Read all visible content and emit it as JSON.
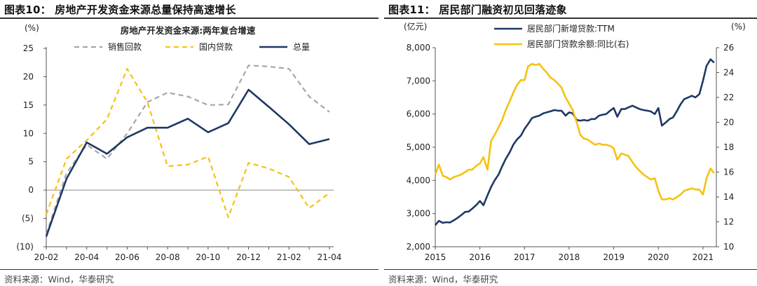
{
  "left": {
    "title": "图表10：  房地产开发资金来源总量保持高速增长",
    "source": "资料来源：Wind，华泰研究",
    "chart_data": {
      "type": "line",
      "title": "房地产开发资金来源:两年复合增速",
      "ylabel": "(%)",
      "xlabel": "",
      "ylim": [
        -10,
        25
      ],
      "yticks": [
        25,
        20,
        15,
        10,
        5,
        0,
        -5,
        -10
      ],
      "ytick_labels": [
        "25",
        "20",
        "15",
        "10",
        "5",
        "0",
        "(5)",
        "(10)"
      ],
      "categories": [
        "20-02",
        "20-03",
        "20-04",
        "20-05",
        "20-06",
        "20-07",
        "20-08",
        "20-09",
        "20-10",
        "20-11",
        "20-12",
        "21-01",
        "21-02",
        "21-03",
        "21-04"
      ],
      "xtick_labels": [
        "20-02",
        "20-04",
        "20-06",
        "20-08",
        "20-10",
        "20-12",
        "21-02",
        "21-04"
      ],
      "legend_position": "top",
      "series": [
        {
          "name": "销售回款",
          "color": "#a6a6a6",
          "dash": "7,5",
          "values": [
            -7.8,
            3.0,
            8.0,
            5.5,
            10.0,
            15.5,
            17.2,
            16.5,
            15.0,
            15.1,
            22.0,
            21.8,
            21.4,
            16.5,
            13.8
          ]
        },
        {
          "name": "国内贷款",
          "color": "#f5c211",
          "dash": "7,5",
          "values": [
            -4.3,
            5.5,
            8.8,
            12.5,
            21.4,
            15.5,
            4.2,
            4.5,
            5.9,
            -4.8,
            4.8,
            3.8,
            2.3,
            -3.2,
            -0.5
          ]
        },
        {
          "name": "总量",
          "color": "#1f3864",
          "dash": "",
          "values": [
            -8.2,
            2.0,
            8.4,
            6.4,
            9.3,
            11.0,
            11.0,
            12.6,
            10.2,
            11.8,
            17.7,
            14.7,
            11.6,
            8.1,
            9.0
          ]
        }
      ]
    }
  },
  "right": {
    "title": "图表11：  居民部门融资初见回落迹象",
    "source": "资料来源：Wind，华泰研究",
    "chart_data": {
      "type": "line",
      "title": "",
      "ylabel_left": "(亿元)",
      "ylabel_right": "(%)",
      "xlabel": "",
      "xlim": [
        2015,
        2021.3
      ],
      "xtick_values": [
        2015,
        2016,
        2017,
        2018,
        2019,
        2020,
        2021
      ],
      "xtick_labels": [
        "2015",
        "2016",
        "2017",
        "2018",
        "2019",
        "2020",
        "2021"
      ],
      "ylim_left": [
        2000,
        8000
      ],
      "yticks_left": [
        2000,
        3000,
        4000,
        5000,
        6000,
        7000,
        8000
      ],
      "ytick_labels_left": [
        "2,000",
        "3,000",
        "4,000",
        "5,000",
        "6,000",
        "7,000",
        "8,000"
      ],
      "ylim_right": [
        10,
        26
      ],
      "yticks_right": [
        10,
        12,
        14,
        16,
        18,
        20,
        22,
        24,
        26
      ],
      "ytick_labels_right": [
        "10",
        "12",
        "14",
        "16",
        "18",
        "20",
        "22",
        "24",
        "26"
      ],
      "legend_position": "top",
      "series": [
        {
          "name": "居民部门新增贷款:TTM",
          "axis": "left",
          "color": "#1f3864",
          "x": [
            2015.0,
            2015.08,
            2015.17,
            2015.25,
            2015.33,
            2015.42,
            2015.5,
            2015.58,
            2015.67,
            2015.75,
            2015.83,
            2015.92,
            2016.0,
            2016.08,
            2016.17,
            2016.25,
            2016.33,
            2016.42,
            2016.5,
            2016.58,
            2016.67,
            2016.75,
            2016.83,
            2016.92,
            2017.0,
            2017.08,
            2017.17,
            2017.25,
            2017.33,
            2017.42,
            2017.5,
            2017.58,
            2017.67,
            2017.75,
            2017.83,
            2017.92,
            2018.0,
            2018.08,
            2018.17,
            2018.25,
            2018.33,
            2018.42,
            2018.5,
            2018.58,
            2018.67,
            2018.75,
            2018.83,
            2018.92,
            2019.0,
            2019.08,
            2019.17,
            2019.25,
            2019.33,
            2019.42,
            2019.5,
            2019.58,
            2019.67,
            2019.75,
            2019.83,
            2019.92,
            2020.0,
            2020.08,
            2020.17,
            2020.25,
            2020.33,
            2020.42,
            2020.5,
            2020.58,
            2020.67,
            2020.75,
            2020.83,
            2020.92,
            2021.0,
            2021.08,
            2021.17,
            2021.25
          ],
          "values": [
            2650,
            2780,
            2720,
            2740,
            2730,
            2800,
            2870,
            2950,
            3050,
            3060,
            3150,
            3260,
            3380,
            3250,
            3550,
            3800,
            4000,
            4180,
            4430,
            4650,
            4850,
            5080,
            5230,
            5350,
            5550,
            5700,
            5880,
            5920,
            5950,
            6020,
            6050,
            6080,
            6120,
            6100,
            6100,
            5950,
            6050,
            6020,
            5820,
            5800,
            5820,
            5800,
            5850,
            5850,
            5950,
            5980,
            6000,
            6100,
            6180,
            5920,
            6150,
            6150,
            6200,
            6250,
            6200,
            6150,
            6120,
            6100,
            6080,
            6000,
            6180,
            5650,
            5750,
            5850,
            5900,
            6100,
            6300,
            6450,
            6500,
            6550,
            6500,
            6600,
            7000,
            7450,
            7650,
            7550
          ]
        },
        {
          "name": "居民部门贷款余额:同比(右)",
          "axis": "right",
          "color": "#f5c211",
          "x": [
            2015.0,
            2015.08,
            2015.17,
            2015.25,
            2015.33,
            2015.42,
            2015.5,
            2015.58,
            2015.67,
            2015.75,
            2015.83,
            2015.92,
            2016.0,
            2016.08,
            2016.17,
            2016.25,
            2016.33,
            2016.42,
            2016.5,
            2016.58,
            2016.67,
            2016.75,
            2016.83,
            2016.92,
            2017.0,
            2017.08,
            2017.17,
            2017.25,
            2017.33,
            2017.42,
            2017.5,
            2017.58,
            2017.67,
            2017.75,
            2017.83,
            2017.92,
            2018.0,
            2018.08,
            2018.17,
            2018.25,
            2018.33,
            2018.42,
            2018.5,
            2018.58,
            2018.67,
            2018.75,
            2018.83,
            2018.92,
            2019.0,
            2019.08,
            2019.17,
            2019.25,
            2019.33,
            2019.42,
            2019.5,
            2019.58,
            2019.67,
            2019.75,
            2019.83,
            2019.92,
            2020.0,
            2020.08,
            2020.17,
            2020.25,
            2020.33,
            2020.42,
            2020.5,
            2020.58,
            2020.67,
            2020.75,
            2020.83,
            2020.92,
            2021.0,
            2021.08,
            2021.17,
            2021.25
          ],
          "values": [
            15.8,
            16.6,
            15.7,
            15.6,
            15.4,
            15.6,
            15.7,
            15.8,
            16.0,
            16.2,
            16.2,
            16.5,
            16.7,
            17.2,
            16.2,
            18.5,
            19.0,
            19.6,
            20.2,
            21.0,
            21.7,
            22.4,
            23.0,
            23.4,
            23.4,
            24.5,
            24.7,
            24.6,
            24.7,
            24.3,
            24.0,
            23.6,
            23.4,
            23.1,
            22.8,
            22.0,
            21.5,
            21.0,
            20.0,
            19.0,
            18.7,
            18.6,
            18.4,
            18.2,
            18.3,
            18.2,
            18.2,
            18.1,
            17.9,
            17.0,
            17.5,
            17.4,
            17.3,
            16.8,
            16.4,
            16.1,
            15.8,
            15.6,
            15.4,
            15.5,
            14.5,
            13.8,
            13.8,
            13.9,
            13.8,
            14.0,
            14.2,
            14.5,
            14.6,
            14.7,
            14.6,
            14.6,
            14.2,
            15.5,
            16.3,
            15.9
          ]
        }
      ]
    }
  }
}
